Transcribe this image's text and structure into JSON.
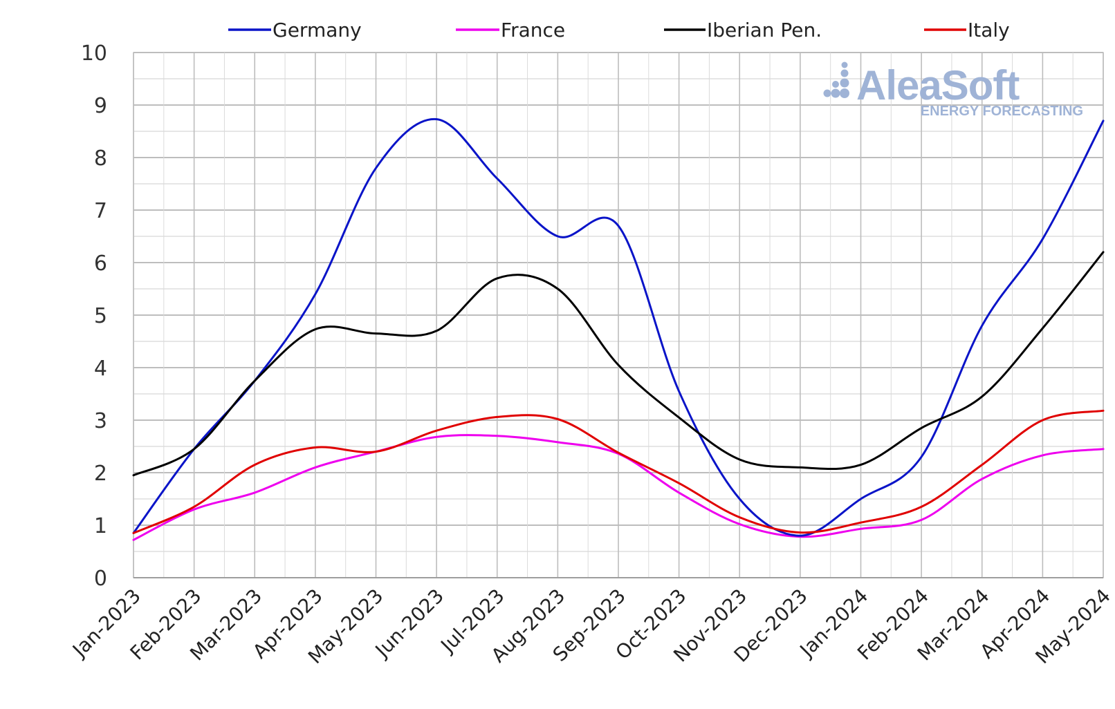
{
  "chart_data": {
    "type": "line",
    "title": "",
    "xlabel": "",
    "ylabel": "",
    "ylim": [
      0,
      10
    ],
    "y_ticks": [
      "0",
      "1",
      "2",
      "3",
      "4",
      "5",
      "6",
      "7",
      "8",
      "9",
      "10"
    ],
    "grid": true,
    "legend_position": "top",
    "categories": [
      "Jan-2023",
      "Feb-2023",
      "Mar-2023",
      "Apr-2023",
      "May-2023",
      "Jun-2023",
      "Jul-2023",
      "Aug-2023",
      "Sep-2023",
      "Oct-2023",
      "Nov-2023",
      "Dec-2023",
      "Jan-2024",
      "Feb-2024",
      "Mar-2024",
      "Apr-2024",
      "May-2024"
    ],
    "series": [
      {
        "name": "Germany",
        "color": "#0a14c8",
        "values": [
          0.85,
          2.45,
          3.75,
          5.4,
          7.8,
          8.73,
          7.6,
          6.5,
          6.7,
          3.55,
          1.5,
          0.8,
          1.5,
          2.3,
          4.8,
          6.45,
          8.7
        ]
      },
      {
        "name": "France",
        "color": "#ee00ee",
        "values": [
          0.72,
          1.3,
          1.62,
          2.1,
          2.4,
          2.68,
          2.7,
          2.58,
          2.36,
          1.62,
          1.02,
          0.78,
          0.93,
          1.1,
          1.88,
          2.33,
          2.45
        ]
      },
      {
        "name": "Iberian Pen.",
        "color": "#000000",
        "values": [
          1.95,
          2.45,
          3.75,
          4.73,
          4.65,
          4.7,
          5.7,
          5.5,
          4.05,
          3.05,
          2.25,
          2.1,
          2.15,
          2.85,
          3.45,
          4.75,
          6.2
        ]
      },
      {
        "name": "Italy",
        "color": "#e00000",
        "values": [
          0.85,
          1.35,
          2.15,
          2.48,
          2.4,
          2.8,
          3.06,
          3.02,
          2.38,
          1.8,
          1.15,
          0.86,
          1.05,
          1.35,
          2.15,
          3.0,
          3.18
        ]
      }
    ]
  },
  "watermark": {
    "name": "AleaSoft",
    "tagline": "ENERGY FORECASTING",
    "color": "#9fb3d6"
  }
}
